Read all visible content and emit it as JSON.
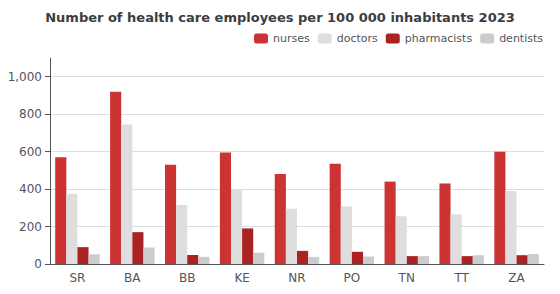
{
  "chart_data": {
    "type": "bar",
    "title": "Number of health care employees per 100 000 inhabitants 2023",
    "categories": [
      "SR",
      "BA",
      "BB",
      "KE",
      "NR",
      "PO",
      "TN",
      "TT",
      "ZA"
    ],
    "series": [
      {
        "name": "nurses",
        "color": "#cc3333",
        "values": [
          570,
          920,
          530,
          595,
          480,
          535,
          440,
          430,
          600
        ]
      },
      {
        "name": "doctors",
        "color": "#dedede",
        "values": [
          375,
          745,
          315,
          395,
          295,
          308,
          255,
          265,
          390
        ]
      },
      {
        "name": "pharmacists",
        "color": "#aa2222",
        "values": [
          90,
          170,
          48,
          190,
          70,
          65,
          42,
          42,
          47
        ]
      },
      {
        "name": "dentists",
        "color": "#cccccc",
        "values": [
          52,
          88,
          38,
          60,
          38,
          40,
          42,
          47,
          53
        ]
      }
    ],
    "ylim": [
      0,
      1100
    ],
    "yticks": [
      0,
      200,
      400,
      600,
      800,
      1000
    ],
    "grid": true,
    "legend": "upper right"
  }
}
